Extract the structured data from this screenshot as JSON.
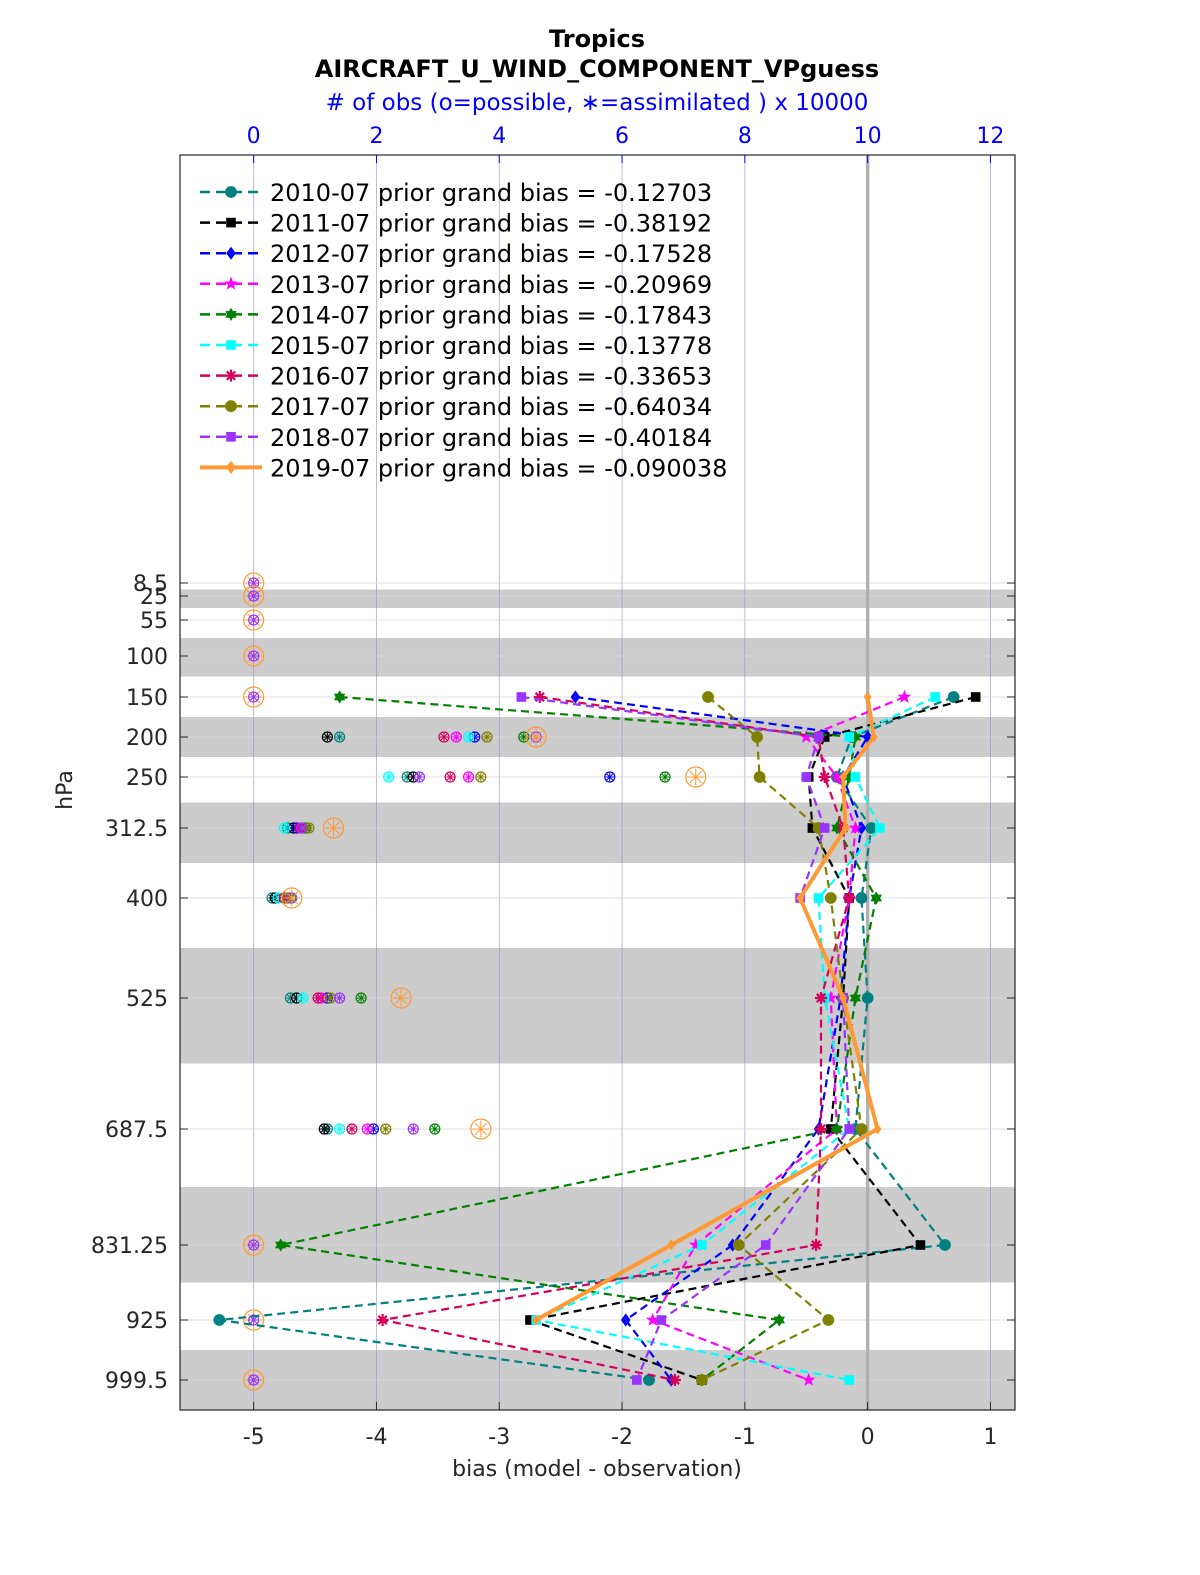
{
  "chart_data": {
    "type": "line",
    "title": "Tropics",
    "subtitle": "AIRCRAFT_U_WIND_COMPONENT_VPguess",
    "top_axis_label": "# of obs (o=possible, ∗=assimilated ) x 10000",
    "xlabel": "bias (model - observation)",
    "ylabel": "hPa",
    "xlim": [
      -5.6,
      1.2
    ],
    "x_ticks": [
      "-5",
      "-4",
      "-3",
      "-2",
      "-1",
      "0",
      "1"
    ],
    "top_xlim": [
      -1.2,
      12.4
    ],
    "top_ticks": [
      "0",
      "2",
      "4",
      "6",
      "8",
      "10",
      "12"
    ],
    "y_ticks": [
      "8.5",
      "25",
      "55",
      "100",
      "150",
      "200",
      "250",
      "312.5",
      "400",
      "525",
      "687.5",
      "831.25",
      "925",
      "999.5"
    ],
    "levels": [
      8.5,
      25,
      55,
      100,
      150,
      200,
      250,
      312.5,
      400,
      525,
      687.5,
      831.25,
      925,
      999.5
    ],
    "shaded_bands": [
      [
        16.75,
        40
      ],
      [
        77.5,
        125
      ],
      [
        175,
        225
      ],
      [
        281.25,
        356.25
      ],
      [
        462.5,
        606.25
      ],
      [
        759.375,
        878.125
      ],
      [
        962.25,
        1036.75
      ]
    ],
    "series": [
      {
        "name": "2010-07 prior grand bias = -0.12703",
        "color": "#008080",
        "marker": "circle",
        "solid": false,
        "levels": [
          150,
          200,
          250,
          312.5,
          400,
          525,
          687.5,
          831.25,
          925,
          999.5
        ],
        "bias": [
          0.7,
          -0.13,
          -0.25,
          0.03,
          -0.05,
          0.0,
          -0.1,
          0.63,
          -5.28,
          -1.78
        ],
        "nobs": [
          null,
          1.4,
          1.5,
          1.0,
          0.8,
          1.0,
          1.4,
          null,
          null,
          null
        ]
      },
      {
        "name": "2011-07 prior grand bias = -0.38192",
        "color": "#000000",
        "marker": "square",
        "solid": false,
        "levels": [
          150,
          200,
          250,
          312.5,
          400,
          525,
          687.5,
          831.25,
          925,
          999.5
        ],
        "bias": [
          0.88,
          -0.35,
          -0.48,
          -0.45,
          -0.15,
          -0.2,
          -0.3,
          0.43,
          -2.75,
          -1.35
        ],
        "nobs": [
          null,
          1.2,
          2.4,
          1.1,
          0.9,
          1.1,
          null,
          null,
          null,
          null
        ]
      },
      {
        "name": "2012-07 prior grand bias = -0.17528",
        "color": "#0000ff",
        "marker": "diamond",
        "solid": false,
        "levels": [
          150,
          200,
          250,
          312.5,
          400,
          525,
          687.5,
          831.25,
          925,
          999.5
        ],
        "bias": [
          -2.38,
          0.0,
          -0.2,
          -0.05,
          -0.15,
          -0.22,
          -0.4,
          -1.1,
          -1.97,
          -1.6
        ],
        "nobs": [
          null,
          3.5,
          6.1,
          null,
          null,
          1.3,
          2.0,
          null,
          null,
          null
        ]
      },
      {
        "name": "2013-07 prior grand bias = -0.20969",
        "color": "#ff00ff",
        "marker": "star5",
        "solid": false,
        "levels": [
          150,
          200,
          250,
          312.5,
          400,
          525,
          687.5,
          831.25,
          925,
          999.5
        ],
        "bias": [
          0.3,
          -0.5,
          -0.25,
          -0.1,
          -0.15,
          -0.3,
          -0.25,
          -1.4,
          -1.75,
          -0.48
        ],
        "nobs": [
          null,
          4.6,
          4.0,
          null,
          null,
          null,
          null,
          null,
          null,
          null
        ]
      },
      {
        "name": "2014-07 prior grand bias = -0.17843",
        "color": "#008000",
        "marker": "hexagram",
        "solid": false,
        "levels": [
          150,
          200,
          250,
          312.5,
          400,
          525,
          687.5,
          831.25,
          925,
          999.5
        ],
        "bias": [
          -4.3,
          -0.1,
          -0.15,
          -0.25,
          0.07,
          -0.1,
          -0.25,
          -4.78,
          -0.72,
          -1.35
        ],
        "nobs": [
          null,
          4.4,
          7.0,
          null,
          null,
          null,
          null,
          null,
          null,
          null
        ]
      },
      {
        "name": "2015-07 prior grand bias = -0.13778",
        "color": "#00ffff",
        "marker": "square",
        "solid": false,
        "levels": [
          150,
          200,
          250,
          312.5,
          400,
          525,
          687.5,
          831.25,
          925,
          999.5
        ],
        "bias": [
          0.55,
          -0.15,
          -0.1,
          0.1,
          -0.4,
          -0.35,
          -0.15,
          -1.35,
          -2.7,
          -0.15
        ],
        "nobs": [
          null,
          null,
          null,
          null,
          null,
          null,
          null,
          null,
          null,
          null
        ]
      },
      {
        "name": "2016-07 prior grand bias = -0.33653",
        "color": "#d6005a",
        "marker": "asterisk",
        "solid": false,
        "levels": [
          150,
          200,
          250,
          312.5,
          400,
          525,
          687.5,
          831.25,
          925,
          999.5
        ],
        "bias": [
          -2.67,
          -0.4,
          -0.35,
          -0.2,
          -0.15,
          -0.38,
          -0.38,
          -0.42,
          -3.95,
          -1.57
        ],
        "nobs": [
          null,
          null,
          null,
          null,
          null,
          null,
          null,
          null,
          null,
          null
        ]
      },
      {
        "name": "2017-07 prior grand bias = -0.64034",
        "color": "#808000",
        "marker": "circle",
        "solid": false,
        "levels": [
          150,
          200,
          250,
          312.5,
          400,
          525,
          687.5,
          831.25,
          925,
          999.5
        ],
        "bias": [
          -1.3,
          -0.9,
          -0.88,
          -0.4,
          -0.3,
          -0.2,
          -0.05,
          -1.05,
          -0.32,
          -1.35
        ],
        "nobs": [
          null,
          null,
          null,
          null,
          null,
          null,
          null,
          null,
          null,
          null
        ]
      },
      {
        "name": "2018-07 prior grand bias = -0.40184",
        "color": "#9933ff",
        "marker": "square",
        "solid": false,
        "levels": [
          150,
          200,
          250,
          312.5,
          400,
          525,
          687.5,
          831.25,
          925,
          999.5
        ],
        "bias": [
          -2.82,
          -0.4,
          -0.5,
          -0.35,
          -0.55,
          -0.2,
          -0.15,
          -0.83,
          -1.68,
          -1.88
        ],
        "nobs": [
          null,
          null,
          null,
          null,
          null,
          null,
          null,
          null,
          null,
          null
        ]
      },
      {
        "name": "2019-07 prior grand bias = -0.090038",
        "color": "#ff9933",
        "marker": "diamond",
        "solid": true,
        "levels": [
          150,
          200,
          250,
          312.5,
          400,
          525,
          687.5,
          831.25,
          925
        ],
        "bias": [
          0.0,
          0.05,
          -0.2,
          -0.18,
          -0.55,
          -0.2,
          0.08,
          -1.6,
          -2.7
        ],
        "nobs": [
          null,
          null,
          null,
          null,
          null,
          null,
          null,
          null,
          null
        ]
      }
    ],
    "nobs_markers": {
      "possible_at_zero_levels": [
        8.5,
        25,
        55,
        100,
        150,
        831.25,
        925,
        999.5
      ],
      "level_200": [
        1.4,
        1.2,
        3.6,
        3.3,
        4.4,
        3.5,
        3.1,
        3.8,
        4.6,
        4.6
      ],
      "level_250": [
        2.5,
        2.6,
        5.8,
        3.5,
        6.7,
        2.2,
        3.2,
        3.7,
        2.7,
        7.2
      ],
      "level_312_5": [
        0.55,
        0.65,
        0.7,
        0.8,
        0.85,
        0.5,
        0.75,
        0.9,
        0.78,
        1.3
      ],
      "level_400": [
        0.3,
        0.35,
        0.55,
        0.5,
        0.6,
        0.4,
        0.5,
        0.55,
        0.62,
        0.62
      ],
      "level_525": [
        0.6,
        0.7,
        1.2,
        1.1,
        1.75,
        0.8,
        1.05,
        1.25,
        1.4,
        2.4
      ],
      "level_687_5": [
        1.2,
        1.15,
        1.95,
        1.85,
        2.95,
        1.4,
        1.6,
        2.15,
        2.6,
        3.7
      ]
    }
  }
}
